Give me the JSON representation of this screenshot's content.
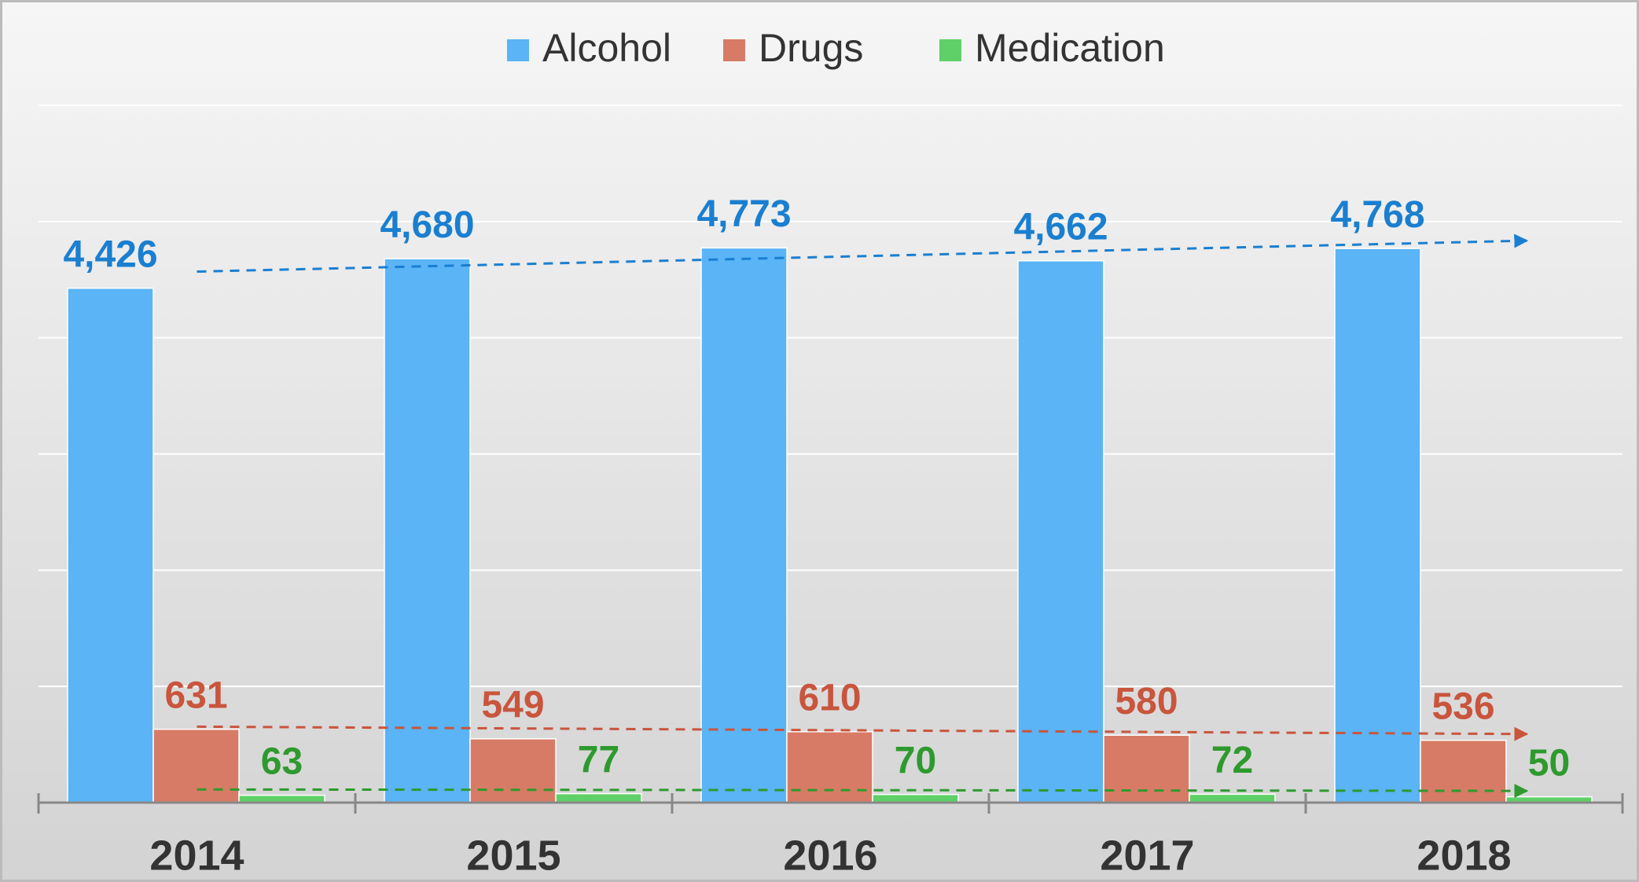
{
  "chart_data": {
    "type": "bar",
    "categories": [
      "2014",
      "2015",
      "2016",
      "2017",
      "2018"
    ],
    "series": [
      {
        "name": "Alcohol",
        "color": "#5ab4f5",
        "label_color": "#1a7fd0",
        "values": [
          4426,
          4680,
          4773,
          4662,
          4768
        ],
        "value_labels": [
          "4,426",
          "4,680",
          "4,773",
          "4,662",
          "4,768"
        ]
      },
      {
        "name": "Drugs",
        "color": "#d87b66",
        "label_color": "#c9553d",
        "values": [
          631,
          549,
          610,
          580,
          536
        ]
      },
      {
        "name": "Medication",
        "color": "#5fd068",
        "label_color": "#2e9a2e",
        "values": [
          63,
          77,
          70,
          72,
          50
        ]
      }
    ],
    "ylim": [
      0,
      6000
    ],
    "yticks": [
      0,
      1000,
      2000,
      3000,
      4000,
      5000,
      6000
    ],
    "grid": true,
    "legend": "top",
    "trend_arrows": true
  }
}
